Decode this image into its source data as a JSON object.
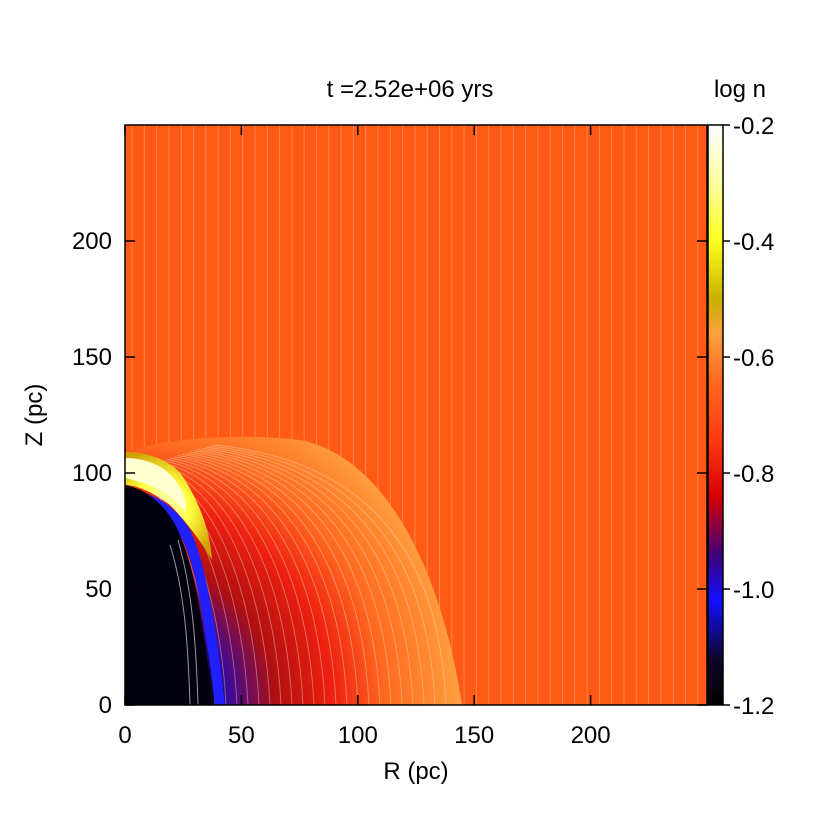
{
  "chart_data": {
    "type": "heatmap",
    "title": "t =2.52e+06 yrs",
    "xlabel": "R (pc)",
    "ylabel": "Z (pc)",
    "xlim": [
      0,
      250
    ],
    "ylim": [
      0,
      250
    ],
    "x_ticks": [
      0,
      50,
      100,
      150,
      200
    ],
    "y_ticks": [
      0,
      50,
      100,
      150,
      200
    ],
    "colorbar": {
      "label": "log n",
      "range": [
        -1.2,
        -0.2
      ],
      "ticks": [
        "-0.2",
        "-0.4",
        "-0.6",
        "-0.8",
        "-1.0",
        "-1.2"
      ]
    },
    "ambient_medium": {
      "log_n": -0.68
    },
    "features": [
      {
        "name": "cavity",
        "log_n_min": -1.2,
        "z_top_pc": 95,
        "r_base_pc": 30
      },
      {
        "name": "dense-cap",
        "log_n_max": -0.2,
        "z_top_pc": 110,
        "r_at_top_pc": 35
      },
      {
        "name": "outer-shell",
        "radius_r_pc": 145,
        "radius_z_pc": 117,
        "log_n_outer": -0.62
      }
    ],
    "grid": false
  }
}
